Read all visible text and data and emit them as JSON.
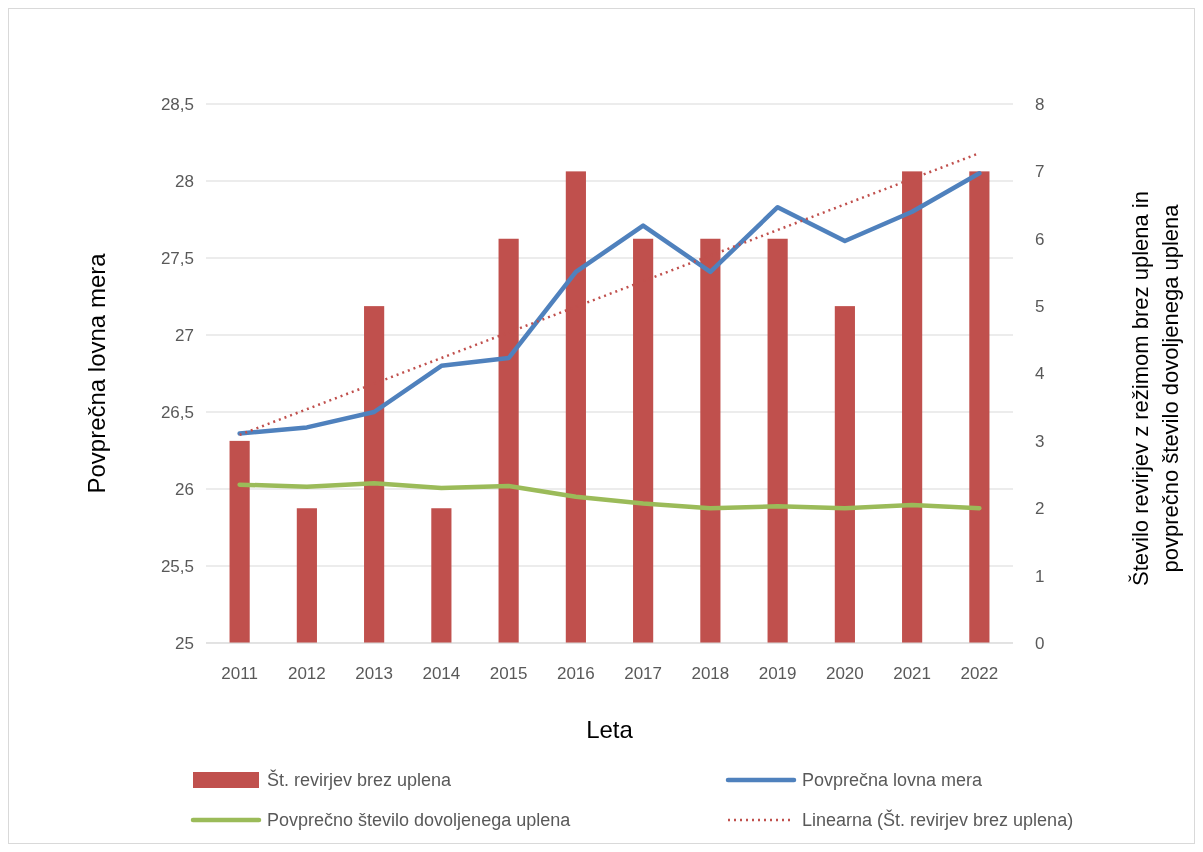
{
  "chart_data": {
    "type": "bar",
    "xlabel": "Leta",
    "ylabel": "Povprečna lovna mera",
    "y2label": "Število revirjev z režimom  brez uplena in povprečno število dovoljenega uplena",
    "categories": [
      "2011",
      "2012",
      "2013",
      "2014",
      "2015",
      "2016",
      "2017",
      "2018",
      "2019",
      "2020",
      "2021",
      "2022"
    ],
    "series": [
      {
        "name": "Št. revirjev brez uplena",
        "axis": "y2",
        "color": "#c0504d",
        "values": [
          3,
          2,
          5,
          2,
          6,
          7,
          6,
          6,
          6,
          5,
          7,
          7
        ]
      },
      {
        "name": "Povprečna lovna mera",
        "type": "line",
        "color": "#4f81bd",
        "values": [
          26.36,
          26.4,
          26.5,
          26.8,
          26.85,
          27.41,
          27.71,
          27.41,
          27.83,
          27.61,
          27.8,
          28.05
        ]
      },
      {
        "name": "Povprečno število dovoljenega uplena",
        "type": "line",
        "axis": "y2",
        "color": "#9bbb59",
        "values": [
          2.35,
          2.32,
          2.37,
          2.3,
          2.33,
          2.17,
          2.07,
          2.0,
          2.03,
          2.0,
          2.05,
          2.0
        ]
      },
      {
        "name": "Linearna (Št. revirjev brez uplena)",
        "type": "line",
        "axis": "y2",
        "line_style": "dotted",
        "color": "#c0504d",
        "values": [
          3.09,
          3.47,
          3.85,
          4.23,
          4.61,
          4.99,
          5.37,
          5.75,
          6.13,
          6.51,
          6.89,
          7.27
        ]
      }
    ],
    "ylim": [
      25,
      28.5
    ],
    "yticks": [
      25,
      {
        "value": 25.5,
        "label": "25,5"
      },
      26,
      {
        "value": 26.5,
        "label": "26,5"
      },
      27,
      {
        "value": 27.5,
        "label": "27,5"
      },
      28,
      {
        "value": 28.5,
        "label": "28,5"
      }
    ],
    "y2lim": [
      0,
      8
    ],
    "y2ticks": [
      0,
      1,
      2,
      3,
      4,
      5,
      6,
      7,
      8
    ],
    "grid": "y",
    "legend": "bottom",
    "marker": "none"
  }
}
